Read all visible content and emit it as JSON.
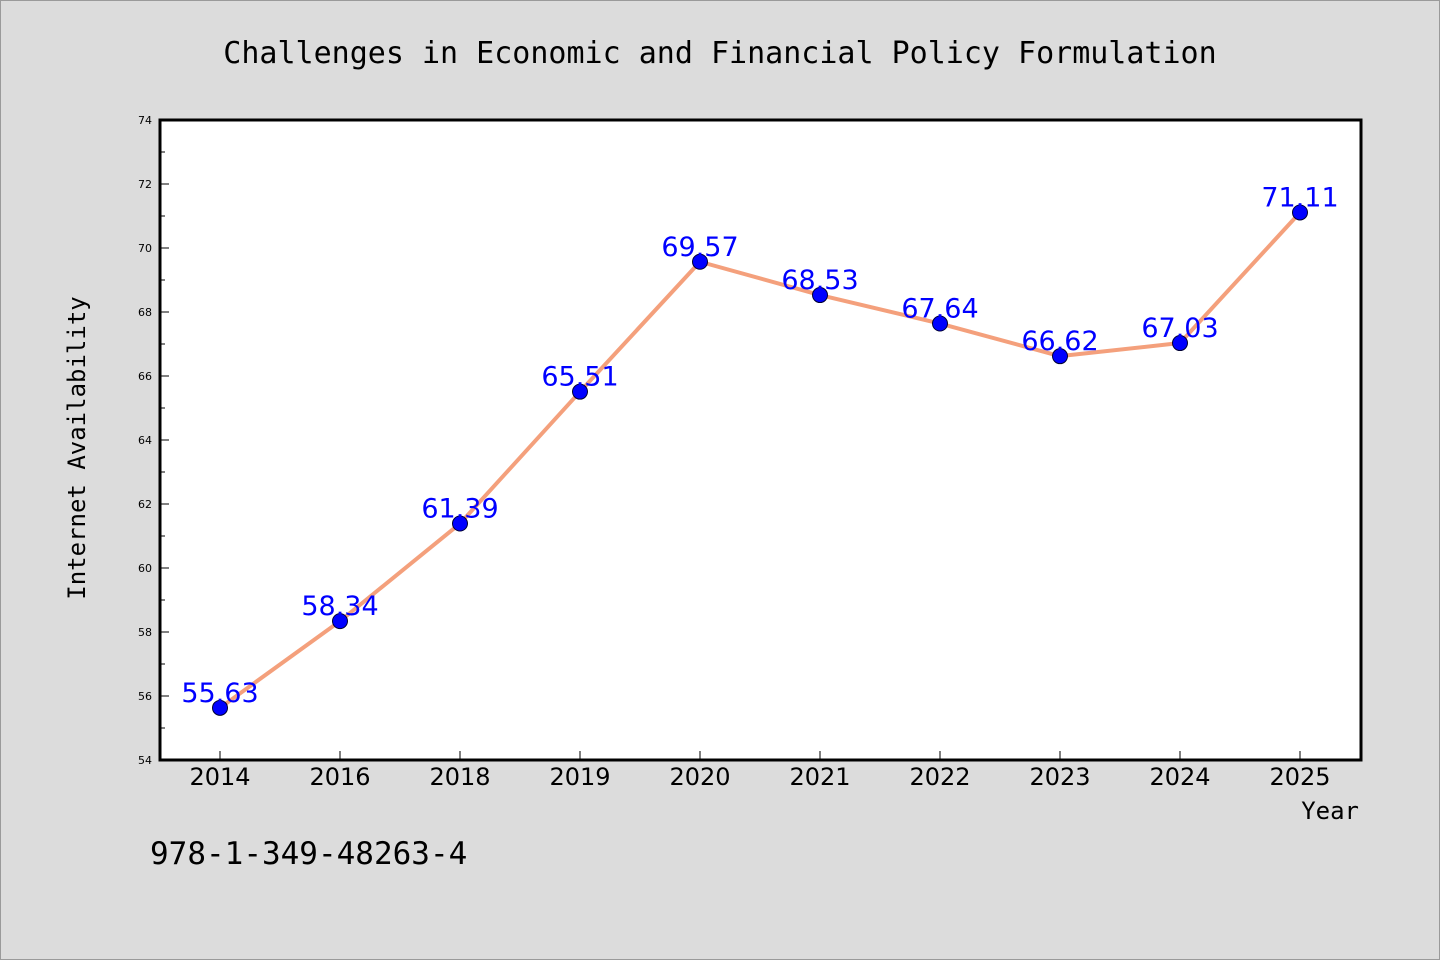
{
  "chart_data": {
    "type": "line",
    "title": "Challenges in Economic and Financial Policy Formulation",
    "xlabel": "Year",
    "ylabel": "Internet Availability",
    "categories": [
      "2014",
      "2016",
      "2018",
      "2019",
      "2020",
      "2021",
      "2022",
      "2023",
      "2024",
      "2025"
    ],
    "values": [
      55.63,
      58.34,
      61.39,
      65.51,
      69.57,
      68.53,
      67.64,
      66.62,
      67.03,
      71.11
    ],
    "data_labels": [
      "55.63",
      "58.34",
      "61.39",
      "65.51",
      "69.57",
      "68.53",
      "67.64",
      "66.62",
      "67.03",
      "71.11"
    ],
    "ylim": [
      54,
      74
    ],
    "yticks": [
      "54",
      "56",
      "58",
      "60",
      "62",
      "64",
      "66",
      "68",
      "70",
      "72",
      "74"
    ],
    "grid": false,
    "legend": "none",
    "colors": {
      "line": "#f4a07c",
      "marker": "#0000ff",
      "label": "#0000ff",
      "background": "#dcdcdc",
      "plot_area": "#ffffff"
    }
  },
  "annotation": {
    "isbn": "978-1-349-48263-4"
  }
}
